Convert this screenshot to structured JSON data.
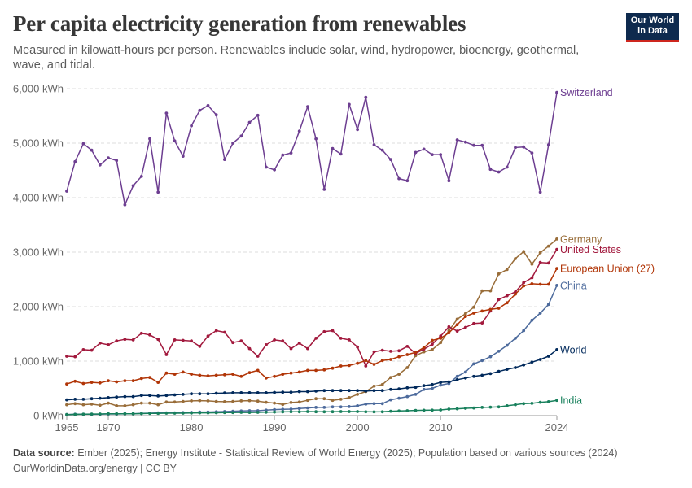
{
  "header": {
    "title": "Per capita electricity generation from renewables",
    "subtitle": "Measured in kilowatt-hours per person. Renewables include solar, wind, hydropower, bioenergy, geothermal, wave, and tidal.",
    "logo_line1": "Our World",
    "logo_line2": "in Data"
  },
  "footer": {
    "source_label": "Data source:",
    "source_text": "Ember (2025); Energy Institute - Statistical Review of World Energy (2025); Population based on various sources (2024)",
    "url": "OurWorldinData.org/energy | CC BY"
  },
  "chart_data": {
    "type": "line",
    "title": "Per capita electricity generation from renewables",
    "xlabel": "",
    "ylabel": "",
    "xlim": [
      1965,
      2024
    ],
    "ylim": [
      0,
      6000
    ],
    "yticks": [
      0,
      1000,
      2000,
      3000,
      4000,
      5000,
      6000
    ],
    "ytick_labels": [
      "0 kWh",
      "1,000 kWh",
      "2,000 kWh",
      "3,000 kWh",
      "4,000 kWh",
      "5,000 kWh",
      "6,000 kWh"
    ],
    "xticks": [
      1965,
      1970,
      1980,
      1990,
      2000,
      2010,
      2024
    ],
    "xtick_labels": [
      "1965",
      "1970",
      "1980",
      "1990",
      "2000",
      "2010",
      "2024"
    ],
    "grid": "horizontal dashed",
    "legend": "line-end labels on the right",
    "series": [
      {
        "name": "Switzerland",
        "color": "#6d3e91",
        "label_value": 5930,
        "start": 1965,
        "values": [
          4120,
          4660,
          4990,
          4870,
          4600,
          4730,
          4680,
          3870,
          4220,
          4390,
          5080,
          4100,
          5550,
          5040,
          4760,
          5320,
          5600,
          5690,
          5520,
          4700,
          5000,
          5130,
          5380,
          5510,
          4560,
          4510,
          4780,
          4820,
          5220,
          5670,
          5080,
          4150,
          4900,
          4800,
          5710,
          5250,
          5840,
          4970,
          4870,
          4700,
          4350,
          4310,
          4830,
          4890,
          4790,
          4790,
          4310,
          5060,
          5020,
          4960,
          4960,
          4520,
          4470,
          4560,
          4920,
          4930,
          4820,
          4100,
          4970,
          5930
        ]
      },
      {
        "name": "Germany",
        "color": "#996d39",
        "label_value": 3240,
        "start": 1965,
        "values": [
          200,
          220,
          200,
          210,
          190,
          230,
          180,
          180,
          200,
          230,
          230,
          200,
          250,
          250,
          260,
          270,
          275,
          270,
          260,
          255,
          260,
          270,
          275,
          265,
          245,
          230,
          205,
          240,
          250,
          280,
          310,
          310,
          280,
          300,
          330,
          390,
          440,
          540,
          570,
          700,
          760,
          880,
          1100,
          1170,
          1210,
          1340,
          1560,
          1770,
          1870,
          1990,
          2290,
          2290,
          2600,
          2680,
          2880,
          3010,
          2780,
          2990,
          3110,
          3240
        ]
      },
      {
        "name": "United States",
        "color": "#a2193d",
        "label_value": 3050,
        "start": 1965,
        "values": [
          1090,
          1080,
          1210,
          1200,
          1330,
          1300,
          1370,
          1400,
          1390,
          1510,
          1480,
          1400,
          1120,
          1390,
          1380,
          1370,
          1270,
          1460,
          1560,
          1530,
          1340,
          1370,
          1230,
          1090,
          1300,
          1390,
          1370,
          1230,
          1330,
          1230,
          1420,
          1540,
          1560,
          1420,
          1390,
          1260,
          910,
          1170,
          1200,
          1180,
          1190,
          1270,
          1140,
          1220,
          1310,
          1460,
          1630,
          1550,
          1620,
          1690,
          1700,
          1920,
          2130,
          2200,
          2270,
          2440,
          2530,
          2810,
          2800,
          3050
        ]
      },
      {
        "name": "European Union (27)",
        "color": "#b13507",
        "label_value": 2700,
        "start": 1965,
        "values": [
          580,
          630,
          590,
          610,
          600,
          640,
          620,
          640,
          640,
          680,
          700,
          610,
          780,
          760,
          800,
          760,
          740,
          730,
          740,
          750,
          760,
          720,
          790,
          830,
          690,
          720,
          760,
          780,
          800,
          830,
          830,
          840,
          870,
          910,
          920,
          960,
          1010,
          940,
          1010,
          1030,
          1080,
          1120,
          1160,
          1250,
          1380,
          1420,
          1520,
          1670,
          1820,
          1880,
          1920,
          1950,
          1970,
          2070,
          2230,
          2380,
          2420,
          2410,
          2410,
          2700
        ]
      },
      {
        "name": "China",
        "color": "#4c6a9c",
        "label_value": 2390,
        "start": 1965,
        "values": [
          20,
          25,
          25,
          25,
          25,
          30,
          30,
          35,
          35,
          40,
          45,
          50,
          50,
          50,
          55,
          60,
          65,
          65,
          70,
          75,
          80,
          85,
          90,
          90,
          100,
          110,
          115,
          120,
          130,
          140,
          150,
          150,
          160,
          160,
          165,
          180,
          210,
          220,
          220,
          290,
          320,
          350,
          390,
          480,
          500,
          560,
          590,
          720,
          800,
          950,
          1010,
          1080,
          1180,
          1290,
          1420,
          1560,
          1750,
          1880,
          2040,
          2390
        ]
      },
      {
        "name": "World",
        "color": "#00295b",
        "label_value": 1210,
        "start": 1965,
        "values": [
          290,
          300,
          300,
          310,
          320,
          330,
          340,
          350,
          350,
          370,
          370,
          360,
          370,
          380,
          390,
          400,
          400,
          400,
          410,
          415,
          420,
          420,
          420,
          420,
          420,
          425,
          430,
          430,
          440,
          440,
          450,
          460,
          460,
          460,
          460,
          460,
          450,
          460,
          460,
          480,
          490,
          510,
          520,
          550,
          570,
          610,
          620,
          660,
          690,
          720,
          740,
          770,
          810,
          850,
          880,
          930,
          980,
          1030,
          1090,
          1210
        ]
      },
      {
        "name": "India",
        "color": "#18805c",
        "label_value": 280,
        "start": 1965,
        "values": [
          20,
          22,
          25,
          28,
          30,
          35,
          35,
          35,
          35,
          38,
          40,
          42,
          45,
          45,
          45,
          48,
          50,
          50,
          52,
          55,
          55,
          60,
          58,
          60,
          62,
          65,
          68,
          70,
          70,
          75,
          72,
          70,
          72,
          75,
          75,
          75,
          70,
          68,
          70,
          80,
          85,
          90,
          95,
          98,
          100,
          105,
          120,
          125,
          135,
          140,
          150,
          155,
          160,
          180,
          200,
          220,
          225,
          245,
          255,
          280
        ]
      }
    ]
  }
}
